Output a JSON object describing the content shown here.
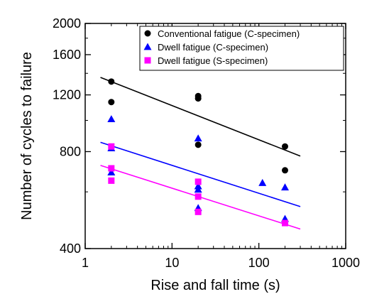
{
  "chart_data": {
    "type": "scatter",
    "title": "",
    "xlabel": "Rise and fall time (s)",
    "ylabel": "Number of cycles to failure",
    "x_scale": "log",
    "y_scale": "log",
    "xlim": [
      1,
      1000
    ],
    "ylim": [
      400,
      2000
    ],
    "x_ticks": [
      1,
      10,
      100,
      1000
    ],
    "x_tick_labels": [
      "1",
      "10",
      "100",
      "1000"
    ],
    "y_ticks": [
      400,
      800,
      1200,
      1600,
      2000
    ],
    "y_tick_labels": [
      "400",
      "800",
      "1200",
      "1600",
      "2000"
    ],
    "grid": false,
    "legend_position": "top-right",
    "series": [
      {
        "name": "Conventional fatigue (C-specimen)",
        "marker": "circle",
        "color": "#000000",
        "points": [
          [
            2,
            1320
          ],
          [
            2,
            1140
          ],
          [
            20,
            1190
          ],
          [
            20,
            1170
          ],
          [
            20,
            840
          ],
          [
            200,
            830
          ],
          [
            200,
            700
          ]
        ],
        "trend": [
          [
            1.5,
            1360
          ],
          [
            300,
            775
          ]
        ]
      },
      {
        "name": "Dwell fatigue (C-specimen)",
        "marker": "triangle",
        "color": "#0000ff",
        "points": [
          [
            2,
            1010
          ],
          [
            2,
            820
          ],
          [
            2,
            690
          ],
          [
            20,
            880
          ],
          [
            20,
            625
          ],
          [
            20,
            610
          ],
          [
            20,
            535
          ],
          [
            110,
            640
          ],
          [
            200,
            620
          ],
          [
            200,
            495
          ]
        ],
        "trend": [
          [
            1.5,
            855
          ],
          [
            300,
            540
          ]
        ]
      },
      {
        "name": "Dwell fatigue (S-specimen)",
        "marker": "square",
        "color": "#ff00ff",
        "points": [
          [
            2,
            830
          ],
          [
            2,
            710
          ],
          [
            2,
            650
          ],
          [
            20,
            645
          ],
          [
            20,
            580
          ],
          [
            20,
            520
          ],
          [
            200,
            480
          ]
        ],
        "trend": [
          [
            1.5,
            725
          ],
          [
            300,
            460
          ]
        ]
      }
    ]
  }
}
